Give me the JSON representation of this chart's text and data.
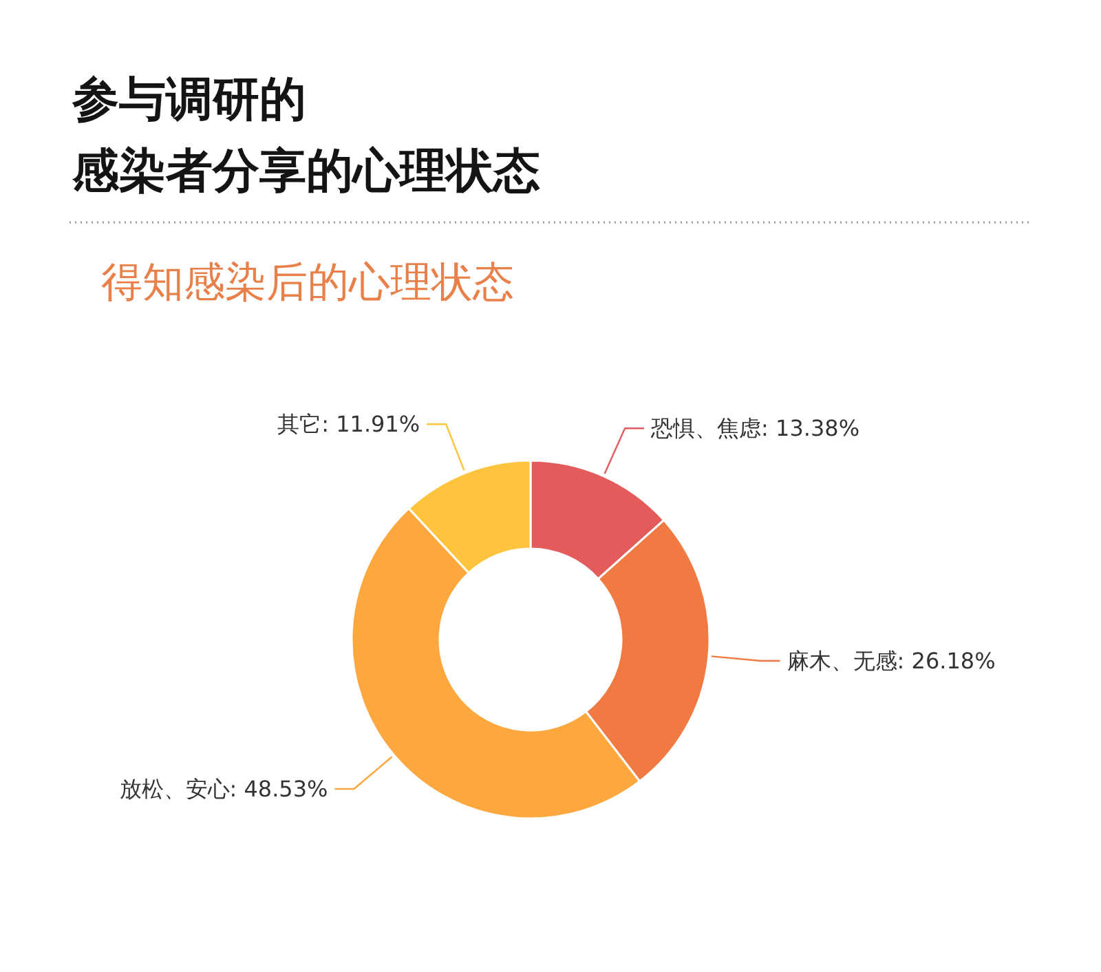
{
  "chart_data": {
    "type": "donut",
    "title": "参与调研的感染者分享的心理状态",
    "subtitle": "得知感染后的心理状态",
    "categories": [
      "恐惧、焦虑",
      "麻木、无感",
      "放松、安心",
      "其它"
    ],
    "values": [
      13.38,
      26.18,
      48.53,
      11.91
    ],
    "colors": [
      "#e35b5b",
      "#f17a42",
      "#fda83e",
      "#fec43e"
    ],
    "value_labels": [
      "13.38%",
      "26.18%",
      "48.53%",
      "11.91%"
    ]
  }
}
